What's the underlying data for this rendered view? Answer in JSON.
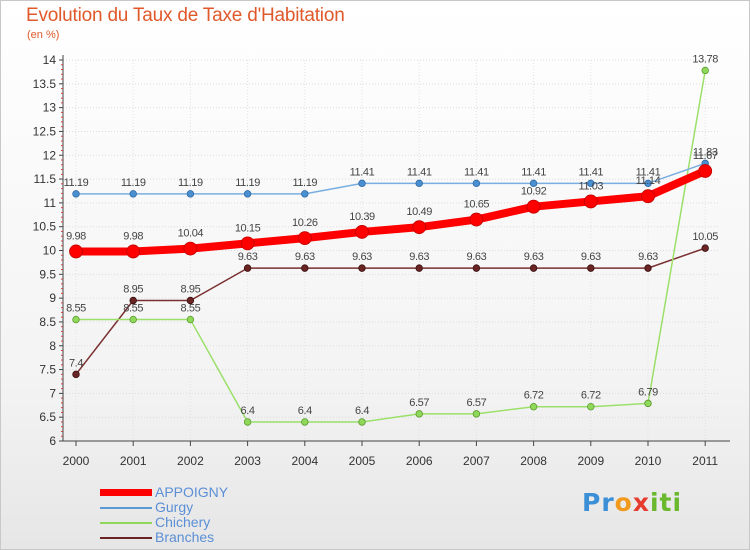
{
  "chart_data": {
    "type": "line",
    "title": "Evolution du Taux de Taxe d'Habitation",
    "subtitle": "(en %)",
    "xlabel": "",
    "ylabel": "",
    "x": [
      "2000",
      "2001",
      "2002",
      "2003",
      "2004",
      "2005",
      "2006",
      "2007",
      "2008",
      "2009",
      "2010",
      "2011"
    ],
    "ylim": [
      6,
      14
    ],
    "yticks": [
      "6",
      "6.5",
      "7",
      "7.5",
      "8",
      "8.5",
      "9",
      "9.5",
      "10",
      "10.5",
      "11",
      "11.5",
      "12",
      "12.5",
      "13",
      "13.5",
      "14"
    ],
    "legend_position": "bottom-left",
    "series": [
      {
        "name": "APPOIGNY",
        "color": "#ff0000",
        "values": [
          9.98,
          9.98,
          10.04,
          10.15,
          10.26,
          10.39,
          10.49,
          10.65,
          10.92,
          11.03,
          11.14,
          11.67
        ],
        "labels": [
          "9.98",
          "9.98",
          "10.04",
          "10.15",
          "10.26",
          "10.39",
          "10.49",
          "10.65",
          "10.92",
          "11.03",
          "11.14",
          "11.67"
        ]
      },
      {
        "name": "Gurgy",
        "color": "#5b9bd5",
        "values": [
          11.19,
          11.19,
          11.19,
          11.19,
          11.19,
          11.41,
          11.41,
          11.41,
          11.41,
          11.41,
          11.41,
          11.83
        ],
        "labels": [
          "11.19",
          "11.19",
          "11.19",
          "11.19",
          "11.19",
          "11.41",
          "11.41",
          "11.41",
          "11.41",
          "11.41",
          "11.41",
          "11.83"
        ]
      },
      {
        "name": "Chichery",
        "color": "#8fd85a",
        "values": [
          8.55,
          8.55,
          8.55,
          6.4,
          6.4,
          6.4,
          6.57,
          6.57,
          6.72,
          6.72,
          6.79,
          13.78
        ],
        "labels": [
          "8.55",
          "8.55",
          "8.55",
          "6.4",
          "6.4",
          "6.4",
          "6.57",
          "6.57",
          "6.72",
          "6.72",
          "6.79",
          "13.78"
        ]
      },
      {
        "name": "Branches",
        "color": "#6b2424",
        "values": [
          7.4,
          8.95,
          8.95,
          9.63,
          9.63,
          9.63,
          9.63,
          9.63,
          9.63,
          9.63,
          9.63,
          10.05
        ],
        "labels": [
          "7.4",
          "8.95",
          "8.95",
          "9.63",
          "9.63",
          "9.63",
          "9.63",
          "9.63",
          "9.63",
          "9.63",
          "9.63",
          "10.05"
        ]
      }
    ]
  },
  "brand": {
    "p1": "Pr",
    "p2": "o",
    "p3": "x",
    "p4": "iti"
  }
}
